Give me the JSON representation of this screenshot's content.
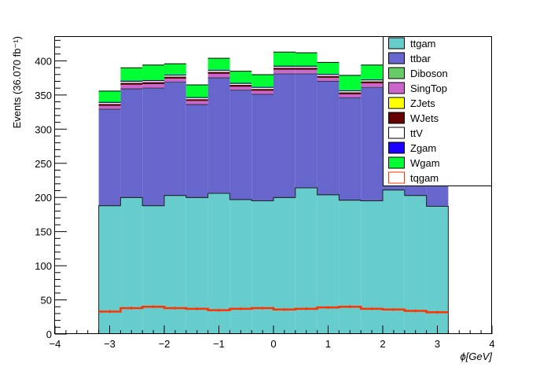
{
  "chart_data": {
    "type": "bar",
    "subtype": "stacked-histogram",
    "title": "",
    "xlabel": "ϕ[GeV]",
    "ylabel": "Events (36.070 fb⁻¹)",
    "xlim": [
      -4,
      4
    ],
    "ylim": [
      0,
      435
    ],
    "x_ticks": [
      "−4",
      "−3",
      "−2",
      "−1",
      "0",
      "1",
      "2",
      "3",
      "4"
    ],
    "y_ticks": [
      "0",
      "50",
      "100",
      "150",
      "200",
      "250",
      "300",
      "350",
      "400"
    ],
    "grid": false,
    "legend_position": "top-right",
    "bin_edges": [
      -3.2,
      -2.8,
      -2.4,
      -2.0,
      -1.6,
      -1.2,
      -0.8,
      -0.4,
      0.0,
      0.4,
      0.8,
      1.2,
      1.6,
      2.0,
      2.4,
      2.8,
      3.2
    ],
    "series": [
      {
        "name": "ttgam",
        "color": "#66cccc",
        "values": [
          188,
          200,
          188,
          203,
          200,
          206,
          197,
          195,
          200,
          214,
          204,
          196,
          195,
          211,
          203,
          187
        ]
      },
      {
        "name": "ttbar",
        "color": "#6666cc",
        "values": [
          141,
          159,
          172,
          166,
          136,
          169,
          160,
          156,
          181,
          167,
          166,
          150,
          166,
          156,
          168,
          173
        ]
      },
      {
        "name": "Diboson",
        "color": "#66cc66",
        "values": [
          0.5,
          0.5,
          0.5,
          0.5,
          0.5,
          0.5,
          0.5,
          0.5,
          0.5,
          0.5,
          0.5,
          0.5,
          0.5,
          0.5,
          0.5,
          0.5
        ]
      },
      {
        "name": "SingTop",
        "color": "#cc66cc",
        "values": [
          5,
          6,
          6,
          5,
          5,
          6,
          5,
          5,
          6,
          6,
          5,
          5,
          6,
          5,
          5,
          5
        ]
      },
      {
        "name": "ZJets",
        "color": "#ffff00",
        "values": [
          0.3,
          0.3,
          0.3,
          0.3,
          0.3,
          0.3,
          0.3,
          0.3,
          0.3,
          0.3,
          0.3,
          0.3,
          0.3,
          0.3,
          0.3,
          0.3
        ]
      },
      {
        "name": "WJets",
        "color": "#660000",
        "values": [
          2,
          2,
          2,
          2,
          2,
          2,
          2,
          2,
          2,
          2,
          2,
          2,
          2,
          2,
          2,
          2
        ]
      },
      {
        "name": "ttV",
        "color": "#ffffff",
        "values": [
          2,
          2,
          2,
          2,
          2,
          2,
          2,
          2,
          2,
          2,
          2,
          2,
          2,
          2,
          2,
          2
        ]
      },
      {
        "name": "Zgam",
        "color": "#1a00ff",
        "values": [
          1,
          1,
          1,
          1,
          1,
          1,
          1,
          1,
          1,
          1,
          1,
          1,
          1,
          1,
          1,
          1
        ]
      },
      {
        "name": "Wgam",
        "color": "#00ff33",
        "values": [
          16,
          19,
          22,
          16,
          18,
          17,
          17,
          18,
          20,
          19,
          17,
          22,
          21,
          22,
          21,
          21
        ]
      }
    ],
    "overlay": {
      "name": "tqgam",
      "color": "#ff3300",
      "values": [
        33,
        38,
        40,
        38,
        37,
        35,
        37,
        38,
        36,
        37,
        39,
        40,
        37,
        36,
        34,
        32
      ]
    }
  }
}
